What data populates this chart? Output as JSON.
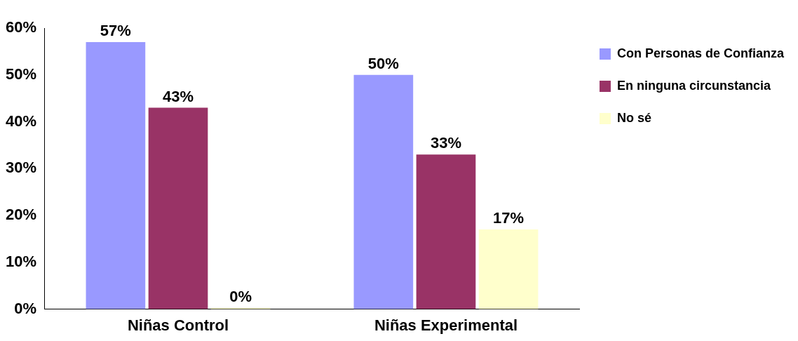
{
  "chart_data": {
    "type": "bar",
    "categories": [
      "Niñas Control",
      "Niñas Experimental"
    ],
    "series": [
      {
        "name": "Con Personas de Confianza",
        "color": "#9999ff",
        "values": [
          57,
          50
        ],
        "value_labels": [
          "57%",
          "50%"
        ]
      },
      {
        "name": "En ninguna circunstancia",
        "color": "#993366",
        "values": [
          43,
          33
        ],
        "value_labels": [
          "43%",
          "33%"
        ]
      },
      {
        "name": "No sé",
        "color": "#ffffcc",
        "values": [
          0,
          17
        ],
        "value_labels": [
          "0%",
          "17%"
        ]
      }
    ],
    "ylim": [
      0,
      60
    ],
    "yticks": [
      {
        "value": 0,
        "label": "0%"
      },
      {
        "value": 10,
        "label": "10%"
      },
      {
        "value": 20,
        "label": "20%"
      },
      {
        "value": 30,
        "label": "30%"
      },
      {
        "value": 40,
        "label": "40%"
      },
      {
        "value": 50,
        "label": "50%"
      },
      {
        "value": 60,
        "label": "60%"
      }
    ],
    "grid": false,
    "legend": "right"
  }
}
